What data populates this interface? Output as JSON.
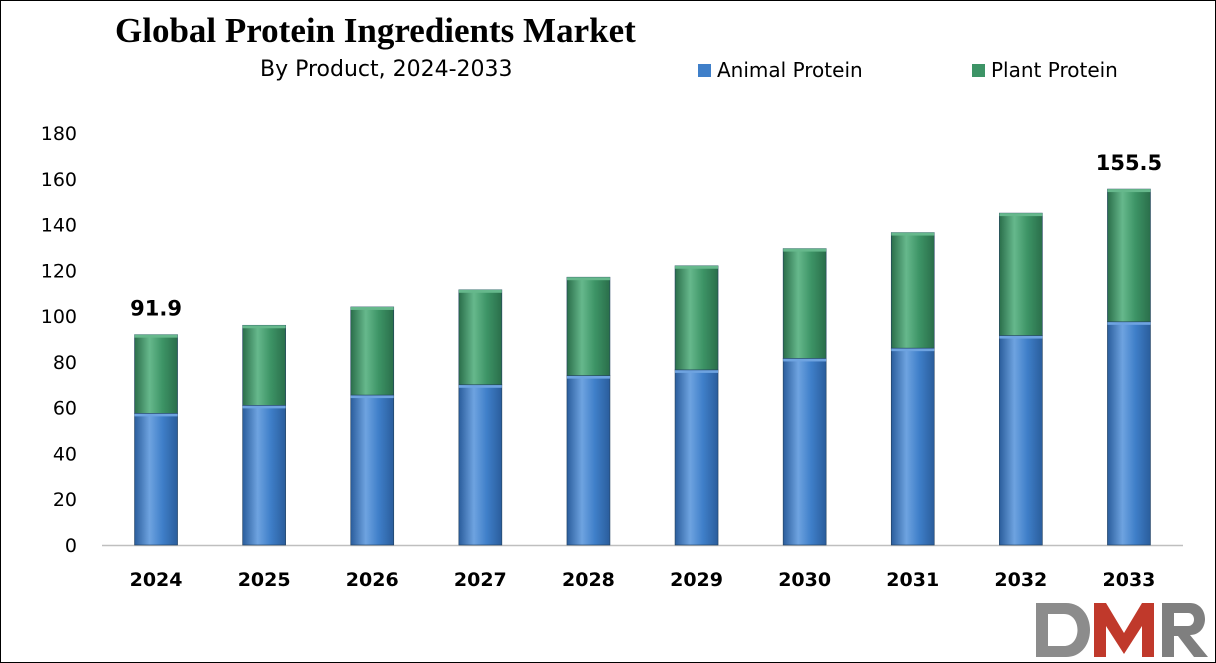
{
  "title": "Global Protein Ingredients Market",
  "subtitle": "By Product, 2024-2033",
  "logo": {
    "text": "DMR",
    "colors": {
      "d": "#8c8c8c",
      "m": "#c0392b",
      "r": "#7f7f7f"
    }
  },
  "colors": {
    "animal": "#3f7fc9",
    "animal_dark": "#2a5d9c",
    "animal_light": "#6ea3e0",
    "plant": "#3d9466",
    "plant_dark": "#2a6e4a",
    "plant_light": "#66b88c"
  },
  "chart_data": {
    "type": "bar",
    "stacked": true,
    "categories": [
      "2024",
      "2025",
      "2026",
      "2027",
      "2028",
      "2029",
      "2030",
      "2031",
      "2032",
      "2033"
    ],
    "series": [
      {
        "name": "Animal Protein",
        "values": [
          57.5,
          61.0,
          65.5,
          70.0,
          74.0,
          76.5,
          81.5,
          86.0,
          91.5,
          97.5
        ]
      },
      {
        "name": "Plant Protein",
        "values": [
          34.4,
          35.0,
          38.5,
          41.5,
          43.0,
          45.5,
          48.0,
          50.5,
          53.5,
          58.0
        ]
      }
    ],
    "data_labels": [
      {
        "category": "2024",
        "text": "91.9"
      },
      {
        "category": "2033",
        "text": "155.5"
      }
    ],
    "ylim": [
      0,
      180
    ],
    "yticks": [
      "0",
      "20",
      "40",
      "60",
      "80",
      "100",
      "120",
      "140",
      "160",
      "180"
    ],
    "grid": false,
    "legend": "top-right"
  }
}
